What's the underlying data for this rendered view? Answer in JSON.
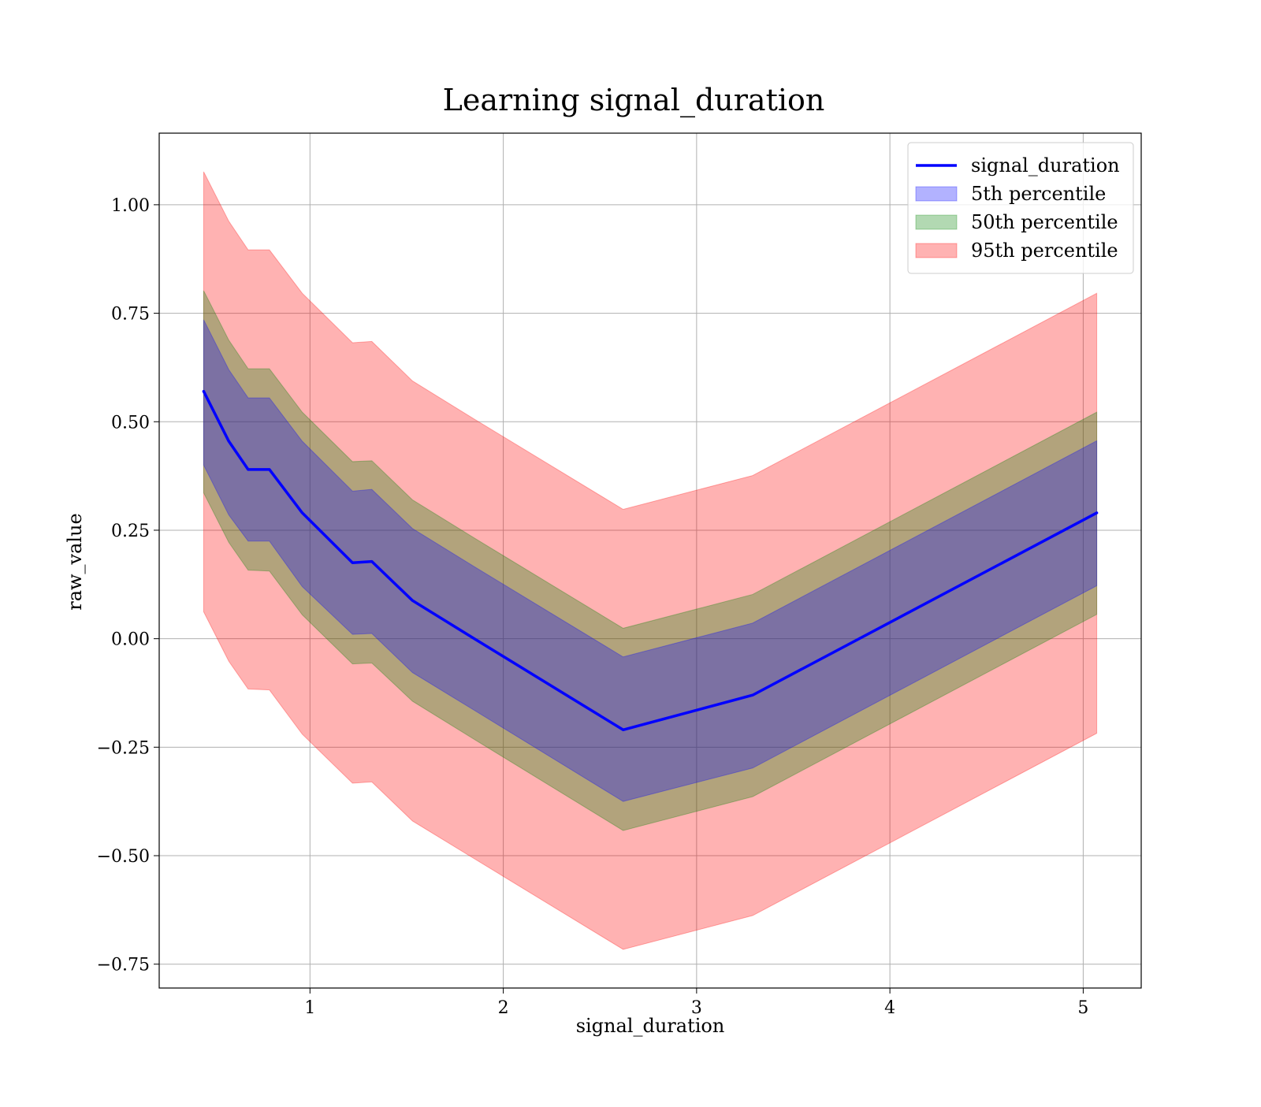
{
  "chart_data": {
    "type": "area",
    "title": "Learning signal_duration",
    "xlabel": "signal_duration",
    "ylabel": "raw_value",
    "xlim": [
      0.22,
      5.3
    ],
    "ylim": [
      -0.805,
      1.165
    ],
    "xticks": [
      1,
      2,
      3,
      4,
      5
    ],
    "xtick_labels": [
      "1",
      "2",
      "3",
      "4",
      "5"
    ],
    "yticks": [
      -0.75,
      -0.5,
      -0.25,
      0.0,
      0.25,
      0.5,
      0.75,
      1.0
    ],
    "ytick_labels": [
      "−0.75",
      "−0.50",
      "−0.25",
      "0.00",
      "0.25",
      "0.50",
      "0.75",
      "1.00"
    ],
    "grid": true,
    "legend_position": "top-right",
    "x": [
      0.45,
      0.58,
      0.68,
      0.79,
      0.96,
      1.22,
      1.32,
      1.53,
      1.85,
      2.62,
      3.29,
      5.07
    ],
    "series": [
      {
        "name": "signal_duration",
        "kind": "line",
        "color": "#0000ff",
        "values": [
          0.57,
          0.455,
          0.39,
          0.39,
          0.29,
          0.175,
          0.178,
          0.088,
          0.0,
          -0.21,
          -0.13,
          0.29
        ]
      },
      {
        "name": "5th percentile",
        "kind": "band",
        "color": "#0000ff",
        "lower": [
          0.4,
          0.285,
          0.225,
          0.225,
          0.12,
          0.01,
          0.012,
          -0.078,
          -0.165,
          -0.375,
          -0.298,
          0.122
        ],
        "upper": [
          0.735,
          0.62,
          0.555,
          0.555,
          0.455,
          0.34,
          0.344,
          0.254,
          0.166,
          -0.042,
          0.036,
          0.456
        ]
      },
      {
        "name": "50th percentile",
        "kind": "band",
        "color": "#008000",
        "lower": [
          0.336,
          0.222,
          0.158,
          0.156,
          0.055,
          -0.058,
          -0.056,
          -0.144,
          -0.232,
          -0.442,
          -0.364,
          0.056
        ],
        "upper": [
          0.802,
          0.688,
          0.622,
          0.622,
          0.522,
          0.408,
          0.41,
          0.32,
          0.232,
          0.024,
          0.102,
          0.522
        ]
      },
      {
        "name": "95th percentile",
        "kind": "band",
        "color": "#ff0000",
        "lower": [
          0.062,
          -0.052,
          -0.116,
          -0.118,
          -0.22,
          -0.333,
          -0.33,
          -0.42,
          -0.507,
          -0.716,
          -0.638,
          -0.218
        ],
        "upper": [
          1.076,
          0.962,
          0.896,
          0.896,
          0.796,
          0.682,
          0.685,
          0.594,
          0.506,
          0.298,
          0.376,
          0.796
        ]
      }
    ]
  }
}
